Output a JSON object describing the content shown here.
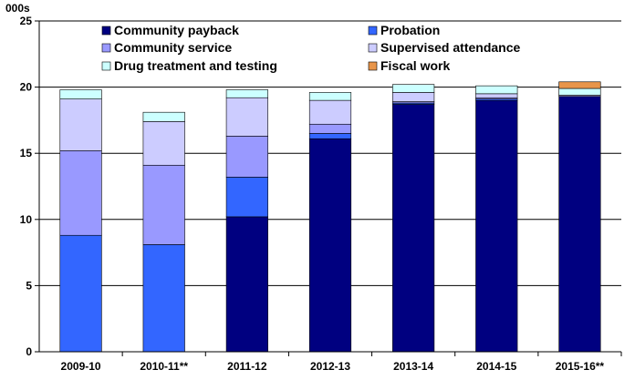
{
  "chart_data": {
    "type": "bar",
    "stacked": true,
    "unit_label": "000s",
    "categories": [
      "2009-10",
      "2010-11**",
      "2011-12",
      "2012-13",
      "2013-14",
      "2014-15",
      "2015-16**"
    ],
    "ylim": [
      0,
      25
    ],
    "yticks": [
      0,
      5,
      10,
      15,
      20,
      25
    ],
    "grid": true,
    "legend_placement": "top",
    "series": [
      {
        "name": "Community payback",
        "color": "#000080",
        "values": [
          0,
          0,
          10.2,
          16.1,
          18.7,
          19.0,
          19.3
        ]
      },
      {
        "name": "Probation",
        "color": "#3366FF",
        "values": [
          8.8,
          8.1,
          3.0,
          0.4,
          0.1,
          0.1,
          0
        ]
      },
      {
        "name": "Community service",
        "color": "#9999FF",
        "values": [
          6.4,
          6.0,
          3.1,
          0.7,
          0.1,
          0.1,
          0
        ]
      },
      {
        "name": "Supervised attendance",
        "color": "#CCCCFF",
        "values": [
          3.9,
          3.3,
          2.9,
          1.8,
          0.7,
          0.3,
          0.1
        ]
      },
      {
        "name": "Drug treatment and testing",
        "color": "#CCFFFF",
        "values": [
          0.7,
          0.7,
          0.6,
          0.6,
          0.6,
          0.6,
          0.5
        ]
      },
      {
        "name": "Fiscal work",
        "color": "#E8954A",
        "values": [
          0,
          0,
          0,
          0,
          0,
          0,
          0.5
        ]
      }
    ]
  }
}
